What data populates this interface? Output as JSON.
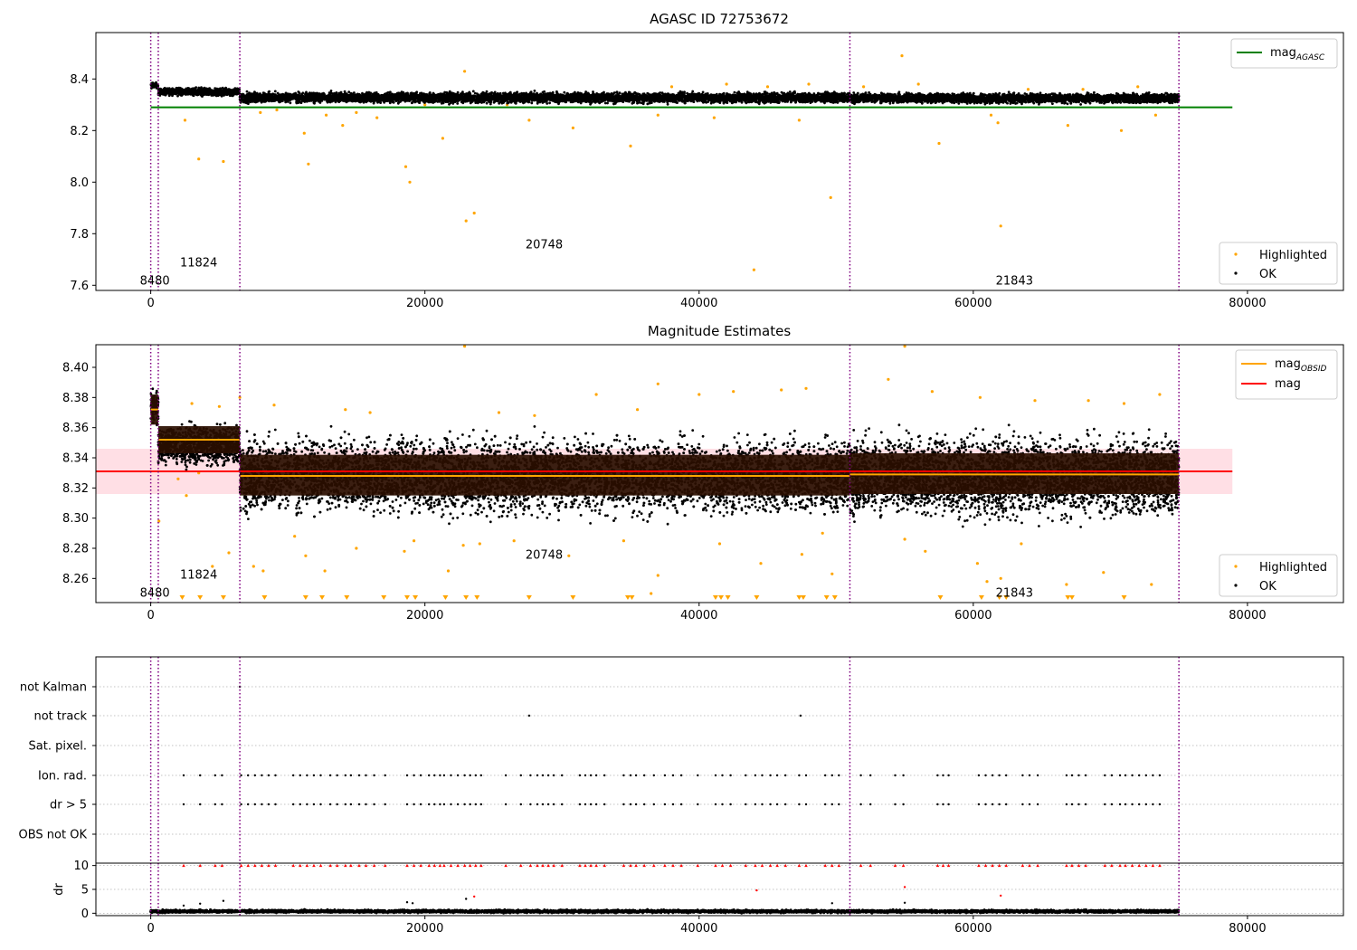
{
  "colors": {
    "highlighted": "#ffa500",
    "ok": "#000000",
    "mag_agasc": "#008000",
    "mag_obsid": "#ffa500",
    "mag": "#ff0000",
    "obs_boundary": "#800080",
    "mag_band": "#ffc0cb",
    "flag_points_dr": "#ff0000",
    "obs_band_fill": "#2a0e00"
  },
  "chart_data": [
    {
      "type": "scatter",
      "title": "AGASC ID 72753672",
      "xlim": [
        -4000,
        87000
      ],
      "ylim": [
        7.58,
        8.58
      ],
      "xticks": [
        0,
        20000,
        40000,
        60000,
        80000
      ],
      "xtick_labels": [
        "0",
        "20000",
        "40000",
        "60000",
        "80000"
      ],
      "yticks": [
        7.6,
        7.8,
        8.0,
        8.2,
        8.4
      ],
      "ytick_labels": [
        "7.6",
        "7.8",
        "8.0",
        "8.2",
        "8.4"
      ],
      "grid": false,
      "obs_boundaries": [
        0,
        550,
        6500,
        51000,
        75000
      ],
      "obs_labels": [
        {
          "text": "8480",
          "x": 300,
          "y": 7.62
        },
        {
          "text": "11824",
          "x": 3500,
          "y": 7.69
        },
        {
          "text": "20748",
          "x": 28700,
          "y": 7.76
        },
        {
          "text": "21843",
          "x": 63000,
          "y": 7.62
        }
      ],
      "mag_agasc": {
        "value": 8.29,
        "xrange": [
          0,
          78900
        ]
      },
      "ok_band": [
        {
          "x0": 0,
          "x1": 550,
          "y0": 8.36,
          "y1": 8.39
        },
        {
          "x0": 550,
          "x1": 6500,
          "y0": 8.33,
          "y1": 8.37
        },
        {
          "x0": 6500,
          "x1": 51000,
          "y0": 8.3,
          "y1": 8.355
        },
        {
          "x0": 51000,
          "x1": 75000,
          "y0": 8.3,
          "y1": 8.35
        }
      ],
      "highlighted_points": [
        [
          2500,
          8.24
        ],
        [
          3500,
          8.09
        ],
        [
          5300,
          8.08
        ],
        [
          11200,
          8.19
        ],
        [
          11500,
          8.07
        ],
        [
          14000,
          8.22
        ],
        [
          16500,
          8.25
        ],
        [
          18600,
          8.06
        ],
        [
          18900,
          8.0
        ],
        [
          21300,
          8.17
        ],
        [
          22900,
          8.43
        ],
        [
          23000,
          7.85
        ],
        [
          23600,
          7.88
        ],
        [
          27600,
          8.24
        ],
        [
          30800,
          8.21
        ],
        [
          35000,
          8.14
        ],
        [
          37000,
          8.26
        ],
        [
          41100,
          8.25
        ],
        [
          44000,
          7.66
        ],
        [
          47300,
          8.24
        ],
        [
          49600,
          7.94
        ],
        [
          54800,
          8.49
        ],
        [
          57500,
          8.15
        ],
        [
          61300,
          8.26
        ],
        [
          61800,
          8.23
        ],
        [
          62000,
          7.83
        ],
        [
          66900,
          8.22
        ],
        [
          70800,
          8.2
        ],
        [
          73300,
          8.26
        ],
        [
          8000,
          8.27
        ],
        [
          9200,
          8.28
        ],
        [
          12800,
          8.26
        ],
        [
          15000,
          8.27
        ],
        [
          20000,
          8.3
        ],
        [
          26000,
          8.3
        ],
        [
          33000,
          8.33
        ],
        [
          38000,
          8.37
        ],
        [
          42000,
          8.38
        ],
        [
          45000,
          8.37
        ],
        [
          48000,
          8.38
        ],
        [
          52000,
          8.37
        ],
        [
          56000,
          8.38
        ],
        [
          64000,
          8.36
        ],
        [
          68000,
          8.36
        ],
        [
          72000,
          8.37
        ]
      ],
      "legends": [
        {
          "position": "top-right",
          "entries": [
            {
              "label": "mag",
              "subscript": "AGASC",
              "kind": "line",
              "color": "#008000"
            }
          ]
        },
        {
          "position": "bottom-right",
          "entries": [
            {
              "label": "Highlighted",
              "kind": "marker",
              "color": "#ffa500"
            },
            {
              "label": "OK",
              "kind": "marker",
              "color": "#000000"
            }
          ]
        }
      ]
    },
    {
      "type": "scatter",
      "title": "Magnitude Estimates",
      "xlim": [
        -4000,
        87000
      ],
      "ylim": [
        8.244,
        8.415
      ],
      "xticks": [
        0,
        20000,
        40000,
        60000,
        80000
      ],
      "xtick_labels": [
        "0",
        "20000",
        "40000",
        "60000",
        "80000"
      ],
      "yticks": [
        8.26,
        8.28,
        8.3,
        8.32,
        8.34,
        8.36,
        8.38,
        8.4
      ],
      "ytick_labels": [
        "8.26",
        "8.28",
        "8.30",
        "8.32",
        "8.34",
        "8.36",
        "8.38",
        "8.40"
      ],
      "grid": false,
      "obs_boundaries": [
        0,
        550,
        6500,
        51000,
        75000
      ],
      "obs_labels": [
        {
          "text": "8480",
          "x": 300,
          "y": 8.251
        },
        {
          "text": "11824",
          "x": 3500,
          "y": 8.263
        },
        {
          "text": "20748",
          "x": 28700,
          "y": 8.276
        },
        {
          "text": "21843",
          "x": 63000,
          "y": 8.251
        }
      ],
      "mag": {
        "value": 8.331,
        "band": [
          8.316,
          8.346
        ],
        "xrange": [
          -4000,
          78900
        ]
      },
      "mag_obsid": [
        {
          "x0": 0,
          "x1": 550,
          "value": 8.372,
          "band": [
            8.362,
            8.382
          ]
        },
        {
          "x0": 550,
          "x1": 6500,
          "value": 8.352,
          "band": [
            8.343,
            8.361
          ]
        },
        {
          "x0": 6500,
          "x1": 51000,
          "value": 8.328,
          "band": [
            8.315,
            8.342
          ]
        },
        {
          "x0": 51000,
          "x1": 75000,
          "value": 8.329,
          "band": [
            8.316,
            8.343
          ]
        }
      ],
      "ok_band": [
        {
          "x0": 0,
          "x1": 550,
          "y0": 8.355,
          "y1": 8.392
        },
        {
          "x0": 550,
          "x1": 6500,
          "y0": 8.331,
          "y1": 8.366
        },
        {
          "x0": 6500,
          "x1": 51000,
          "y0": 8.294,
          "y1": 8.362
        },
        {
          "x0": 51000,
          "x1": 75000,
          "y0": 8.292,
          "y1": 8.363
        }
      ],
      "highlighted_points": [
        [
          600,
          8.298
        ],
        [
          2000,
          8.326
        ],
        [
          2600,
          8.315
        ],
        [
          3500,
          8.33
        ],
        [
          4500,
          8.268
        ],
        [
          5700,
          8.277
        ],
        [
          7500,
          8.268
        ],
        [
          8200,
          8.265
        ],
        [
          10500,
          8.288
        ],
        [
          11300,
          8.275
        ],
        [
          12700,
          8.265
        ],
        [
          15000,
          8.28
        ],
        [
          18500,
          8.278
        ],
        [
          19200,
          8.285
        ],
        [
          21700,
          8.265
        ],
        [
          22800,
          8.282
        ],
        [
          24000,
          8.283
        ],
        [
          26500,
          8.285
        ],
        [
          30500,
          8.275
        ],
        [
          34500,
          8.285
        ],
        [
          36500,
          8.25
        ],
        [
          37000,
          8.262
        ],
        [
          41500,
          8.283
        ],
        [
          44500,
          8.27
        ],
        [
          47500,
          8.276
        ],
        [
          49000,
          8.29
        ],
        [
          49700,
          8.263
        ],
        [
          55000,
          8.286
        ],
        [
          56500,
          8.278
        ],
        [
          60300,
          8.27
        ],
        [
          61000,
          8.258
        ],
        [
          62000,
          8.26
        ],
        [
          63500,
          8.283
        ],
        [
          66800,
          8.256
        ],
        [
          69500,
          8.264
        ],
        [
          73000,
          8.256
        ],
        [
          22900,
          8.414
        ],
        [
          55000,
          8.414
        ],
        [
          37000,
          8.389
        ],
        [
          46000,
          8.385
        ],
        [
          53800,
          8.392
        ],
        [
          9000,
          8.375
        ],
        [
          14200,
          8.372
        ],
        [
          25400,
          8.37
        ],
        [
          32500,
          8.382
        ],
        [
          40000,
          8.382
        ],
        [
          42500,
          8.384
        ],
        [
          47800,
          8.386
        ],
        [
          57000,
          8.384
        ],
        [
          60500,
          8.38
        ],
        [
          64500,
          8.378
        ],
        [
          68400,
          8.378
        ],
        [
          71000,
          8.376
        ],
        [
          73600,
          8.382
        ],
        [
          3000,
          8.376
        ],
        [
          5000,
          8.374
        ],
        [
          6500,
          8.38
        ],
        [
          16000,
          8.37
        ],
        [
          28000,
          8.368
        ],
        [
          35500,
          8.372
        ]
      ],
      "below_limit_markers": [
        2300,
        3600,
        5300,
        8300,
        11300,
        12500,
        14300,
        17000,
        18700,
        19300,
        21500,
        23000,
        23800,
        27600,
        30800,
        34800,
        35100,
        41200,
        41600,
        42100,
        44200,
        47300,
        47600,
        49300,
        49900,
        57600,
        60600,
        61900,
        62400,
        66900,
        67200,
        71000
      ],
      "legends": [
        {
          "position": "top-right",
          "entries": [
            {
              "label": "mag",
              "subscript": "OBSID",
              "kind": "line",
              "color": "#ffa500"
            },
            {
              "label": "mag",
              "kind": "line",
              "color": "#ff0000"
            }
          ]
        },
        {
          "position": "bottom-right",
          "entries": [
            {
              "label": "Highlighted",
              "kind": "marker",
              "color": "#ffa500"
            },
            {
              "label": "OK",
              "kind": "marker",
              "color": "#000000"
            }
          ]
        }
      ]
    },
    {
      "type": "scatter",
      "title": "",
      "xlim": [
        -4000,
        87000
      ],
      "categories": [
        "OBS not OK",
        "dr > 5",
        "Ion. rad.",
        "Sat. pixel.",
        "not track",
        "not Kalman"
      ],
      "grid": "y-dotted",
      "obs_boundaries": [
        0,
        550,
        6500,
        51000,
        75000
      ],
      "flag_points": {
        "not Kalman": [
          6500
        ],
        "not track": [
          27600,
          47400
        ],
        "Sat. pixel.": [],
        "Ion. rad.": [
          2400,
          3600,
          4700,
          5200,
          6600,
          7100,
          7600,
          8100,
          8600,
          9100,
          10400,
          10900,
          11400,
          11900,
          12400,
          13100,
          13600,
          14200,
          14600,
          15200,
          15700,
          16300,
          17100,
          18700,
          19200,
          19700,
          20300,
          20700,
          21100,
          21400,
          21900,
          22400,
          22900,
          23300,
          23700,
          24100,
          25900,
          27000,
          27700,
          28200,
          28600,
          29000,
          29400,
          30000,
          31300,
          31700,
          32100,
          32500,
          33100,
          34500,
          35000,
          35400,
          36000,
          36700,
          37500,
          38100,
          38700,
          39900,
          41200,
          41700,
          42300,
          43400,
          44100,
          44600,
          45200,
          45700,
          46300,
          47300,
          47800,
          49200,
          49700,
          50200,
          51800,
          52500,
          54300,
          54900,
          57400,
          57800,
          58200,
          60400,
          60900,
          61400,
          61900,
          62400,
          63600,
          64100,
          64700,
          66800,
          67200,
          67700,
          68200,
          69600,
          70100,
          70700,
          71100,
          71600,
          72100,
          72600,
          73100,
          73600
        ],
        "dr > 5": [
          2400,
          3600,
          4700,
          5200,
          6600,
          7100,
          7600,
          8100,
          8600,
          9100,
          10400,
          10900,
          11400,
          11900,
          12400,
          13100,
          13600,
          14200,
          14600,
          15200,
          15700,
          16300,
          17100,
          18700,
          19200,
          19700,
          20300,
          20700,
          21100,
          21400,
          21900,
          22400,
          22900,
          23300,
          23700,
          24100,
          25900,
          27000,
          27700,
          28200,
          28600,
          29000,
          29400,
          30000,
          31300,
          31700,
          32100,
          32500,
          33100,
          34500,
          35000,
          35400,
          36000,
          36700,
          37500,
          38100,
          38700,
          39900,
          41200,
          41700,
          42300,
          43400,
          44100,
          44600,
          45200,
          45700,
          46300,
          47300,
          47800,
          49200,
          49700,
          50200,
          51800,
          52500,
          54300,
          54900,
          57400,
          57800,
          58200,
          60400,
          60900,
          61400,
          61900,
          62400,
          63600,
          64100,
          64700,
          66800,
          67200,
          67700,
          68200,
          69600,
          70100,
          70700,
          71100,
          71600,
          72100,
          72600,
          73100,
          73600
        ],
        "OBS not OK": []
      }
    },
    {
      "type": "scatter",
      "title": "",
      "ylabel": "dr",
      "xlim": [
        -4000,
        87000
      ],
      "ylim": [
        -0.5,
        10.5
      ],
      "xticks": [
        0,
        20000,
        40000,
        60000,
        80000
      ],
      "xtick_labels": [
        "0",
        "20000",
        "40000",
        "60000",
        "80000"
      ],
      "yticks": [
        0,
        5,
        10
      ],
      "ytick_labels": [
        "0",
        "5",
        "10"
      ],
      "grid": "y-dotted",
      "obs_boundaries": [
        0,
        550,
        6500,
        51000,
        75000
      ],
      "ok_band": {
        "x0": 0,
        "x1": 75000,
        "y0": 0,
        "y1": 0.8
      },
      "ok_points": [
        [
          2400,
          1.6
        ],
        [
          3600,
          2.0
        ],
        [
          5300,
          2.6
        ],
        [
          18700,
          2.3
        ],
        [
          19100,
          2.1
        ],
        [
          23000,
          3.0
        ],
        [
          49700,
          2.1
        ],
        [
          55000,
          2.2
        ]
      ],
      "clipped_points_at_10": [
        2400,
        3600,
        4700,
        5200,
        6600,
        7100,
        7600,
        8100,
        8600,
        9100,
        10400,
        10900,
        11400,
        11900,
        12400,
        13100,
        13600,
        14200,
        14600,
        15200,
        15700,
        16300,
        17100,
        18700,
        19200,
        19700,
        20300,
        20700,
        21100,
        21400,
        21900,
        22400,
        22900,
        23300,
        23700,
        24100,
        25900,
        27000,
        27700,
        28200,
        28600,
        29000,
        29400,
        30000,
        31300,
        31700,
        32100,
        32500,
        33100,
        34500,
        35000,
        35400,
        36000,
        36700,
        37500,
        38100,
        38700,
        39900,
        41200,
        41700,
        42300,
        43400,
        44100,
        44600,
        45200,
        45700,
        46300,
        47300,
        47800,
        49200,
        49700,
        50200,
        51800,
        52500,
        54300,
        54900,
        57400,
        57800,
        58200,
        60400,
        60900,
        61400,
        61900,
        62400,
        63600,
        64100,
        64700,
        66800,
        67200,
        67700,
        68200,
        69600,
        70100,
        70700,
        71100,
        71600,
        72100,
        72600,
        73100,
        73600
      ],
      "red_points": [
        [
          23600,
          3.5
        ],
        [
          44200,
          4.8
        ],
        [
          55000,
          5.5
        ],
        [
          62000,
          3.7
        ]
      ]
    }
  ]
}
